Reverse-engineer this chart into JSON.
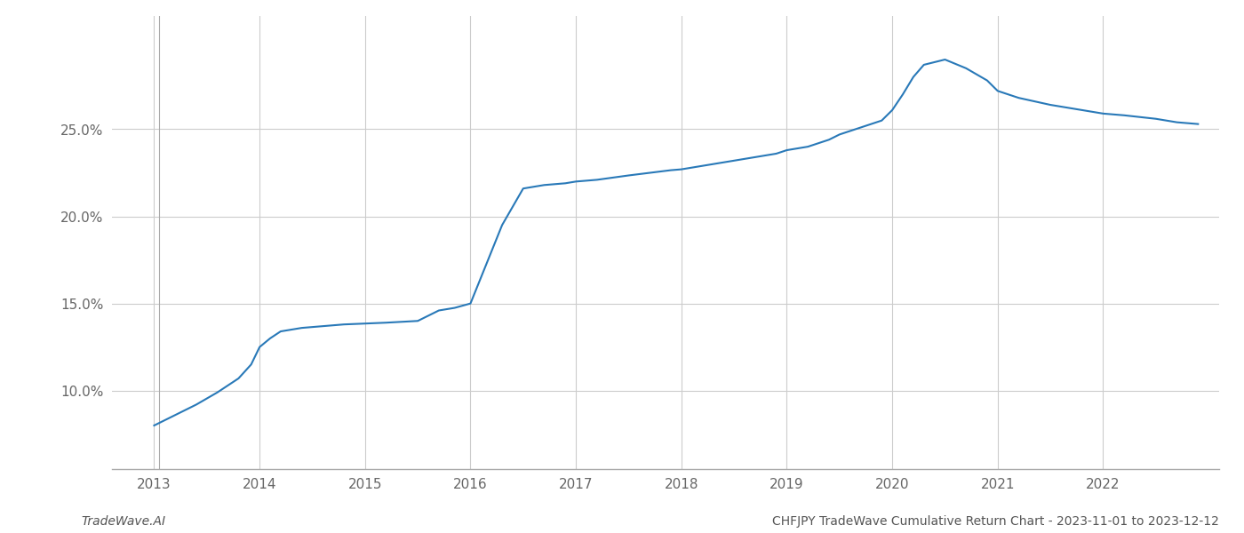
{
  "x": [
    2013.0,
    2013.2,
    2013.4,
    2013.6,
    2013.8,
    2013.92,
    2014.0,
    2014.1,
    2014.2,
    2014.4,
    2014.6,
    2014.8,
    2015.0,
    2015.2,
    2015.5,
    2015.7,
    2015.85,
    2016.0,
    2016.1,
    2016.2,
    2016.3,
    2016.5,
    2016.7,
    2016.9,
    2017.0,
    2017.2,
    2017.5,
    2017.7,
    2017.9,
    2018.0,
    2018.2,
    2018.5,
    2018.7,
    2018.9,
    2019.0,
    2019.2,
    2019.4,
    2019.5,
    2019.6,
    2019.8,
    2019.9,
    2020.0,
    2020.1,
    2020.2,
    2020.3,
    2020.5,
    2020.7,
    2020.9,
    2021.0,
    2021.2,
    2021.5,
    2021.7,
    2021.9,
    2022.0,
    2022.2,
    2022.5,
    2022.7,
    2022.9
  ],
  "y": [
    8.0,
    8.6,
    9.2,
    9.9,
    10.7,
    11.5,
    12.5,
    13.0,
    13.4,
    13.6,
    13.7,
    13.8,
    13.85,
    13.9,
    14.0,
    14.6,
    14.75,
    15.0,
    16.5,
    18.0,
    19.5,
    21.6,
    21.8,
    21.9,
    22.0,
    22.1,
    22.35,
    22.5,
    22.65,
    22.7,
    22.9,
    23.2,
    23.4,
    23.6,
    23.8,
    24.0,
    24.4,
    24.7,
    24.9,
    25.3,
    25.5,
    26.1,
    27.0,
    28.0,
    28.7,
    29.0,
    28.5,
    27.8,
    27.2,
    26.8,
    26.4,
    26.2,
    26.0,
    25.9,
    25.8,
    25.6,
    25.4,
    25.3
  ],
  "line_color": "#2979b8",
  "line_width": 1.5,
  "background_color": "#ffffff",
  "grid_color": "#cccccc",
  "footer_left": "TradeWave.AI",
  "footer_right": "CHFJPY TradeWave Cumulative Return Chart - 2023-11-01 to 2023-12-12",
  "footer_fontsize": 10,
  "xticks": [
    2013,
    2014,
    2015,
    2016,
    2017,
    2018,
    2019,
    2020,
    2021,
    2022
  ],
  "yticks": [
    10.0,
    15.0,
    20.0,
    25.0
  ],
  "ylim": [
    5.5,
    31.5
  ],
  "xlim": [
    2012.6,
    2023.1
  ]
}
